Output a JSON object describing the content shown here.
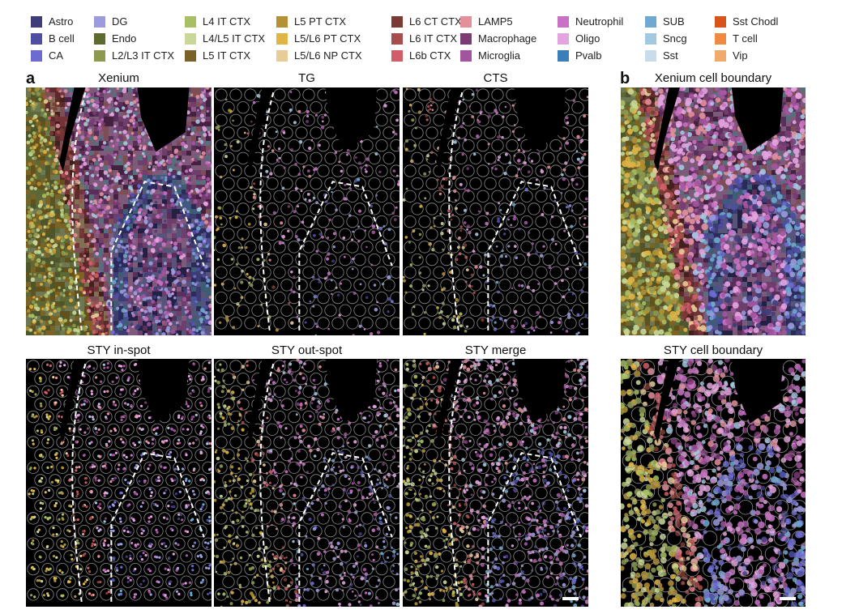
{
  "figure": {
    "legend": [
      {
        "label": "Astro",
        "color": "#3f3c7a"
      },
      {
        "label": "B cell",
        "color": "#4e4ea3"
      },
      {
        "label": "CA",
        "color": "#6d6bd0"
      },
      {
        "label": "DG",
        "color": "#9c9bdd"
      },
      {
        "label": "Endo",
        "color": "#5e6b2e"
      },
      {
        "label": "L2/L3 IT CTX",
        "color": "#8c9a50"
      },
      {
        "label": "L4 IT CTX",
        "color": "#a8c063"
      },
      {
        "label": "L4/L5 IT CTX",
        "color": "#c9d898"
      },
      {
        "label": "L5 IT CTX",
        "color": "#7a6128"
      },
      {
        "label": "L5 PT CTX",
        "color": "#b39134"
      },
      {
        "label": "L5/L6 PT CTX",
        "color": "#e0b445"
      },
      {
        "label": "L5/L6 NP CTX",
        "color": "#e8cc98"
      },
      {
        "label": "L6 CT CTX",
        "color": "#7b3b34"
      },
      {
        "label": "L6 IT CTX",
        "color": "#a84d4d"
      },
      {
        "label": "L6b CTX",
        "color": "#d05d68"
      },
      {
        "label": "LAMP5",
        "color": "#e3909b"
      },
      {
        "label": "Macrophage",
        "color": "#7a3c73"
      },
      {
        "label": "Microglia",
        "color": "#a354a0"
      },
      {
        "label": "Neutrophil",
        "color": "#c971c5"
      },
      {
        "label": "Oligo",
        "color": "#e4a4df"
      },
      {
        "label": "Pvalb",
        "color": "#3a7fb8"
      },
      {
        "label": "SUB",
        "color": "#6ea9d2"
      },
      {
        "label": "Sncg",
        "color": "#a3c8e0"
      },
      {
        "label": "Sst",
        "color": "#c9dcea"
      },
      {
        "label": "Sst Chodl",
        "color": "#d9541a"
      },
      {
        "label": "T cell",
        "color": "#f08a3e"
      },
      {
        "label": "Vip",
        "color": "#f0aa6c"
      }
    ],
    "panel_a_letter": "a",
    "panel_b_letter": "b",
    "panels": {
      "xenium": "Xenium",
      "tg": "TG",
      "cts": "CTS",
      "sty_in": "STY in-spot",
      "sty_out": "STY out-spot",
      "sty_merge": "STY merge",
      "xenium_boundary": "Xenium cell boundary",
      "sty_boundary": "STY cell boundary"
    }
  }
}
